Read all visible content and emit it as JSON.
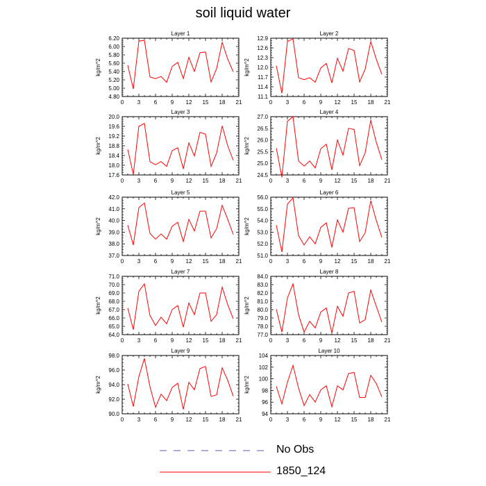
{
  "title": "soil liquid water",
  "legend": [
    {
      "label": "No Obs",
      "color": "#5555aa",
      "dash": true
    },
    {
      "label": "1850_124",
      "color": "#ff0000",
      "dash": false
    }
  ],
  "chart_data": [
    {
      "type": "line",
      "title": "Layer 1",
      "ylabel": "kg/m^2",
      "xlim": [
        0,
        21
      ],
      "ylim": [
        4.8,
        6.2
      ],
      "xticks": [
        "0",
        "3",
        "6",
        "9",
        "12",
        "15",
        "18",
        "21"
      ],
      "yticks": [
        "4.80",
        "5.00",
        "5.20",
        "5.40",
        "5.60",
        "5.80",
        "6.00",
        "6.20"
      ],
      "series": [
        {
          "color": "#ff0000",
          "x": [
            1,
            2,
            3,
            4,
            5,
            6,
            7,
            8,
            9,
            10,
            11,
            12,
            13,
            14,
            15,
            16,
            17,
            18,
            19,
            20
          ],
          "values": [
            5.55,
            4.98,
            6.13,
            6.15,
            5.27,
            5.23,
            5.28,
            5.14,
            5.52,
            5.62,
            5.23,
            5.74,
            5.4,
            5.85,
            5.87,
            5.15,
            5.47,
            6.1,
            5.7,
            5.39
          ]
        }
      ]
    },
    {
      "type": "line",
      "title": "Layer 2",
      "ylabel": "kg/m^2",
      "xlim": [
        0,
        21
      ],
      "ylim": [
        11.1,
        12.9
      ],
      "xticks": [
        "0",
        "3",
        "6",
        "9",
        "12",
        "15",
        "18",
        "21"
      ],
      "yticks": [
        "11.1",
        "11.4",
        "11.7",
        "12.0",
        "12.3",
        "12.6",
        "12.9"
      ],
      "series": [
        {
          "color": "#ff0000",
          "x": [
            1,
            2,
            3,
            4,
            5,
            6,
            7,
            8,
            9,
            10,
            11,
            12,
            13,
            14,
            15,
            16,
            17,
            18,
            19,
            20
          ],
          "values": [
            12.05,
            11.2,
            12.8,
            12.88,
            11.68,
            11.62,
            11.68,
            11.54,
            11.98,
            12.12,
            11.52,
            12.28,
            11.88,
            12.58,
            12.52,
            11.55,
            11.95,
            12.8,
            12.25,
            11.78
          ]
        }
      ]
    },
    {
      "type": "line",
      "title": "Layer 3",
      "ylabel": "kg/m^2",
      "xlim": [
        0,
        21
      ],
      "ylim": [
        17.6,
        20.0
      ],
      "xticks": [
        "0",
        "3",
        "6",
        "9",
        "12",
        "15",
        "18",
        "21"
      ],
      "yticks": [
        "17.6",
        "18.0",
        "18.4",
        "18.8",
        "19.2",
        "19.6",
        "20.0"
      ],
      "series": [
        {
          "color": "#ff0000",
          "x": [
            1,
            2,
            3,
            4,
            5,
            6,
            7,
            8,
            9,
            10,
            11,
            12,
            13,
            14,
            15,
            16,
            17,
            18,
            19,
            20
          ],
          "values": [
            18.65,
            17.62,
            19.6,
            19.72,
            18.15,
            18.02,
            18.15,
            17.95,
            18.6,
            18.72,
            17.85,
            18.92,
            18.38,
            19.35,
            19.28,
            17.95,
            18.5,
            19.62,
            18.8,
            18.2
          ]
        }
      ]
    },
    {
      "type": "line",
      "title": "Layer 4",
      "ylabel": "kg/m^2",
      "xlim": [
        0,
        21
      ],
      "ylim": [
        24.5,
        27.0
      ],
      "xticks": [
        "0",
        "3",
        "6",
        "9",
        "12",
        "15",
        "18",
        "21"
      ],
      "yticks": [
        "24.5",
        "25.0",
        "25.5",
        "26.0",
        "26.5",
        "27.0"
      ],
      "series": [
        {
          "color": "#ff0000",
          "x": [
            1,
            2,
            3,
            4,
            5,
            6,
            7,
            8,
            9,
            10,
            11,
            12,
            13,
            14,
            15,
            16,
            17,
            18,
            19,
            20
          ],
          "values": [
            25.65,
            24.4,
            26.8,
            27.0,
            25.1,
            24.88,
            25.1,
            24.8,
            25.62,
            25.82,
            24.72,
            26.0,
            25.35,
            26.5,
            26.45,
            24.9,
            25.45,
            26.85,
            25.9,
            25.15
          ]
        }
      ]
    },
    {
      "type": "line",
      "title": "Layer 5",
      "ylabel": "kg/m^2",
      "xlim": [
        0,
        21
      ],
      "ylim": [
        37.0,
        42.0
      ],
      "xticks": [
        "0",
        "3",
        "6",
        "9",
        "12",
        "15",
        "18",
        "21"
      ],
      "yticks": [
        "37.0",
        "38.0",
        "39.0",
        "40.0",
        "41.0",
        "42.0"
      ],
      "series": [
        {
          "color": "#ff0000",
          "x": [
            1,
            2,
            3,
            4,
            5,
            6,
            7,
            8,
            9,
            10,
            11,
            12,
            13,
            14,
            15,
            16,
            17,
            18,
            19,
            20
          ],
          "values": [
            39.6,
            37.9,
            41.1,
            41.5,
            38.9,
            38.4,
            38.85,
            38.4,
            39.5,
            39.85,
            38.2,
            40.1,
            39.1,
            40.8,
            40.8,
            38.5,
            39.3,
            41.3,
            40.1,
            38.8
          ]
        }
      ]
    },
    {
      "type": "line",
      "title": "Layer 6",
      "ylabel": "kg/m^2",
      "xlim": [
        0,
        21
      ],
      "ylim": [
        51.0,
        56.0
      ],
      "xticks": [
        "0",
        "3",
        "6",
        "9",
        "12",
        "15",
        "18",
        "21"
      ],
      "yticks": [
        "51.0",
        "52.0",
        "53.0",
        "54.0",
        "55.0",
        "56.0"
      ],
      "series": [
        {
          "color": "#ff0000",
          "x": [
            1,
            2,
            3,
            4,
            5,
            6,
            7,
            8,
            9,
            10,
            11,
            12,
            13,
            14,
            15,
            16,
            17,
            18,
            19,
            20
          ],
          "values": [
            53.6,
            51.3,
            55.4,
            55.95,
            52.7,
            51.9,
            52.6,
            52.0,
            53.4,
            53.8,
            51.7,
            54.05,
            53.0,
            55.05,
            55.1,
            52.2,
            52.95,
            55.7,
            54.0,
            52.55
          ]
        }
      ]
    },
    {
      "type": "line",
      "title": "Layer 7",
      "ylabel": "kg/m^2",
      "xlim": [
        0,
        21
      ],
      "ylim": [
        64.0,
        71.0
      ],
      "xticks": [
        "0",
        "3",
        "6",
        "9",
        "12",
        "15",
        "18",
        "21"
      ],
      "yticks": [
        "64.0",
        "65.0",
        "66.0",
        "67.0",
        "68.0",
        "69.0",
        "70.0",
        "71.0"
      ],
      "series": [
        {
          "color": "#ff0000",
          "x": [
            1,
            2,
            3,
            4,
            5,
            6,
            7,
            8,
            9,
            10,
            11,
            12,
            13,
            14,
            15,
            16,
            17,
            18,
            19,
            20
          ],
          "values": [
            67.2,
            64.6,
            69.2,
            70.1,
            66.3,
            65.1,
            66.1,
            65.3,
            67.0,
            67.5,
            64.9,
            67.8,
            66.4,
            69.0,
            69.0,
            65.6,
            66.4,
            69.7,
            67.6,
            65.9
          ]
        }
      ]
    },
    {
      "type": "line",
      "title": "Layer 8",
      "ylabel": "kg/m^2",
      "xlim": [
        0,
        21
      ],
      "ylim": [
        77.0,
        84.0
      ],
      "xticks": [
        "0",
        "3",
        "6",
        "9",
        "12",
        "15",
        "18",
        "21"
      ],
      "yticks": [
        "77.0",
        "78.0",
        "79.0",
        "80.0",
        "81.0",
        "82.0",
        "83.0",
        "84.0"
      ],
      "series": [
        {
          "color": "#ff0000",
          "x": [
            1,
            2,
            3,
            4,
            5,
            6,
            7,
            8,
            9,
            10,
            11,
            12,
            13,
            14,
            15,
            16,
            17,
            18,
            19,
            20
          ],
          "values": [
            80.05,
            77.3,
            81.4,
            83.1,
            79.4,
            77.3,
            78.6,
            77.8,
            79.7,
            80.2,
            77.2,
            80.4,
            79.2,
            82.0,
            82.2,
            78.4,
            78.8,
            82.35,
            80.4,
            78.5
          ]
        }
      ]
    },
    {
      "type": "line",
      "title": "Layer 9",
      "ylabel": "kg/m^2",
      "xlim": [
        0,
        21
      ],
      "ylim": [
        90.0,
        98.0
      ],
      "xticks": [
        "0",
        "3",
        "6",
        "9",
        "12",
        "15",
        "18",
        "21"
      ],
      "yticks": [
        "90.0",
        "92.0",
        "94.0",
        "96.0",
        "98.0"
      ],
      "series": [
        {
          "color": "#ff0000",
          "x": [
            1,
            2,
            3,
            4,
            5,
            6,
            7,
            8,
            9,
            10,
            11,
            12,
            13,
            14,
            15,
            16,
            17,
            18,
            19,
            20
          ],
          "values": [
            94.1,
            91.0,
            95.1,
            97.6,
            93.7,
            90.9,
            92.7,
            91.8,
            93.6,
            94.2,
            90.6,
            94.3,
            93.3,
            96.2,
            96.5,
            92.4,
            92.6,
            96.3,
            94.6,
            92.4
          ]
        }
      ]
    },
    {
      "type": "line",
      "title": "Layer 10",
      "ylabel": "kg/m^2",
      "xlim": [
        0,
        21
      ],
      "ylim": [
        94,
        104
      ],
      "xticks": [
        "0",
        "3",
        "6",
        "9",
        "12",
        "15",
        "18",
        "21"
      ],
      "yticks": [
        "94",
        "96",
        "98",
        "100",
        "102",
        "104"
      ],
      "series": [
        {
          "color": "#ff0000",
          "x": [
            1,
            2,
            3,
            4,
            5,
            6,
            7,
            8,
            9,
            10,
            11,
            12,
            13,
            14,
            15,
            16,
            17,
            18,
            19,
            20
          ],
          "values": [
            98.7,
            95.7,
            99.4,
            102.3,
            98.4,
            95.4,
            97.3,
            96.0,
            98.1,
            98.8,
            95.2,
            98.8,
            98.1,
            100.9,
            101.1,
            96.8,
            96.8,
            100.6,
            99.2,
            96.9
          ]
        }
      ]
    }
  ]
}
